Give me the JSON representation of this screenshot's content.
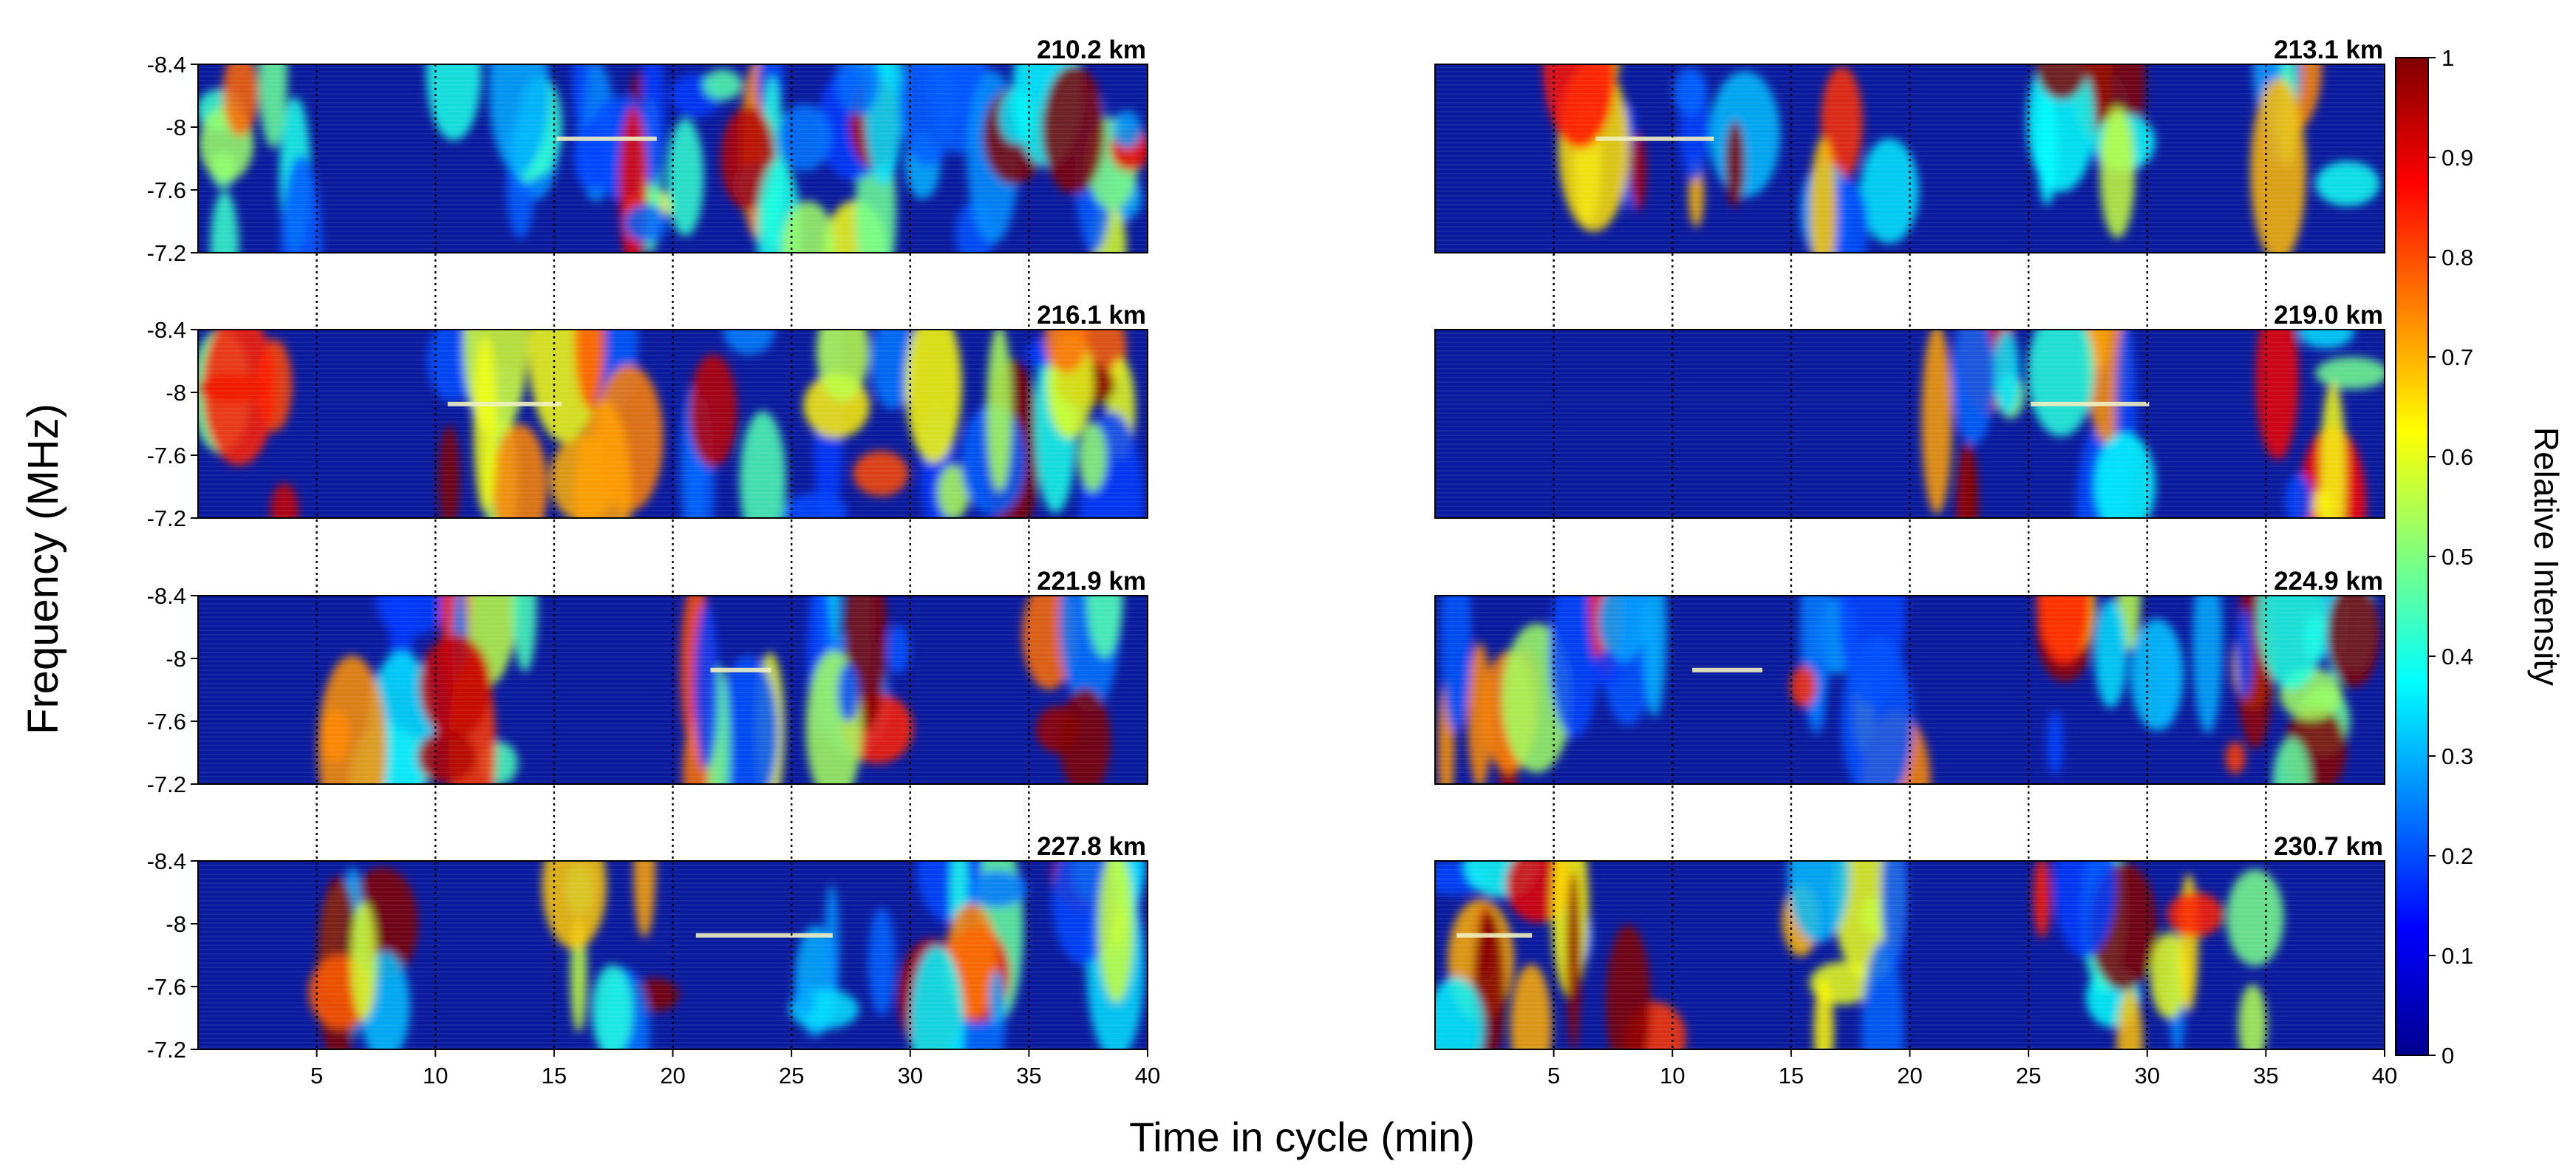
{
  "chart_data": {
    "type": "heatmap",
    "ylabel": "Frequency (MHz)",
    "xlabel": "Time in cycle (min)",
    "xlim": [
      0,
      40
    ],
    "ylim": [
      -8.4,
      -7.2
    ],
    "x_ticks": [
      "5",
      "10",
      "15",
      "20",
      "25",
      "30",
      "35",
      "40"
    ],
    "y_ticks": [
      "-8.4",
      "-8",
      "-7.6",
      "-7.2"
    ],
    "vertical_guides_min": [
      5,
      10,
      15,
      20,
      25,
      30,
      35
    ],
    "colorbar": {
      "label": "Relative Intensity",
      "colormap": "jet",
      "range": [
        0,
        1
      ],
      "ticks": [
        "0",
        "0.1",
        "0.2",
        "0.3",
        "0.4",
        "0.5",
        "0.6",
        "0.7",
        "0.8",
        "0.9",
        "1"
      ]
    },
    "panels": [
      {
        "altitude": "210.2 km",
        "column": "left",
        "row": 0
      },
      {
        "altitude": "213.1 km",
        "column": "right",
        "row": 0
      },
      {
        "altitude": "216.1 km",
        "column": "left",
        "row": 1
      },
      {
        "altitude": "219.0 km",
        "column": "right",
        "row": 1
      },
      {
        "altitude": "221.9 km",
        "column": "left",
        "row": 2
      },
      {
        "altitude": "224.9 km",
        "column": "right",
        "row": 2
      },
      {
        "altitude": "227.8 km",
        "column": "left",
        "row": 3
      },
      {
        "altitude": "230.7 km",
        "column": "right",
        "row": 3
      }
    ],
    "colors": {
      "background": "#0a1a9c",
      "low": "#00008f",
      "mid": "#00ffff",
      "high": "#ff0000",
      "max": "#800000"
    }
  }
}
